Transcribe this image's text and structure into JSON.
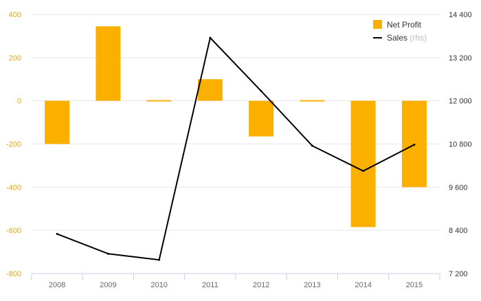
{
  "chart_data": {
    "type": "bar",
    "categories": [
      "2008",
      "2009",
      "2010",
      "2011",
      "2012",
      "2013",
      "2014",
      "2015"
    ],
    "series": [
      {
        "name": "Net Profit",
        "type": "bar",
        "axis": "left",
        "color": "#FBB000",
        "values": [
          -200,
          345,
          5,
          100,
          -165,
          5,
          -585,
          -400
        ]
      },
      {
        "name": "Sales",
        "name_suffix": "(rhs)",
        "type": "line",
        "axis": "right",
        "color": "#000000",
        "values": [
          8300,
          7750,
          7580,
          13750,
          12270,
          10750,
          10050,
          10780
        ]
      }
    ],
    "left_axis": {
      "ylim": [
        -800,
        400
      ],
      "ticks": [
        400,
        200,
        0,
        -200,
        -400,
        -600,
        -800
      ],
      "tick_labels": [
        "400",
        "200",
        "0",
        "-200",
        "-400",
        "-600",
        "-800"
      ],
      "label_color": "#F0A500"
    },
    "right_axis": {
      "ylim": [
        7200,
        14400
      ],
      "ticks": [
        14400,
        13200,
        12000,
        10800,
        9600,
        8400,
        7200
      ],
      "tick_labels": [
        "14 400",
        "13 200",
        "12 000",
        "10 800",
        "9 600",
        "8 400",
        "7 200"
      ],
      "label_color": "#333333"
    },
    "legend": {
      "position": "top-right",
      "items": [
        {
          "label": "Net Profit",
          "suffix": "",
          "swatch": "square"
        },
        {
          "label": "Sales",
          "suffix": "(rhs)",
          "swatch": "line"
        }
      ]
    },
    "grid": true,
    "colors": {
      "grid": "#E6E6E6",
      "x_axis_line": "#C9D0E3",
      "x_label": "#666666",
      "suffix": "#BBBBBB",
      "legend_text": "#333333"
    }
  }
}
